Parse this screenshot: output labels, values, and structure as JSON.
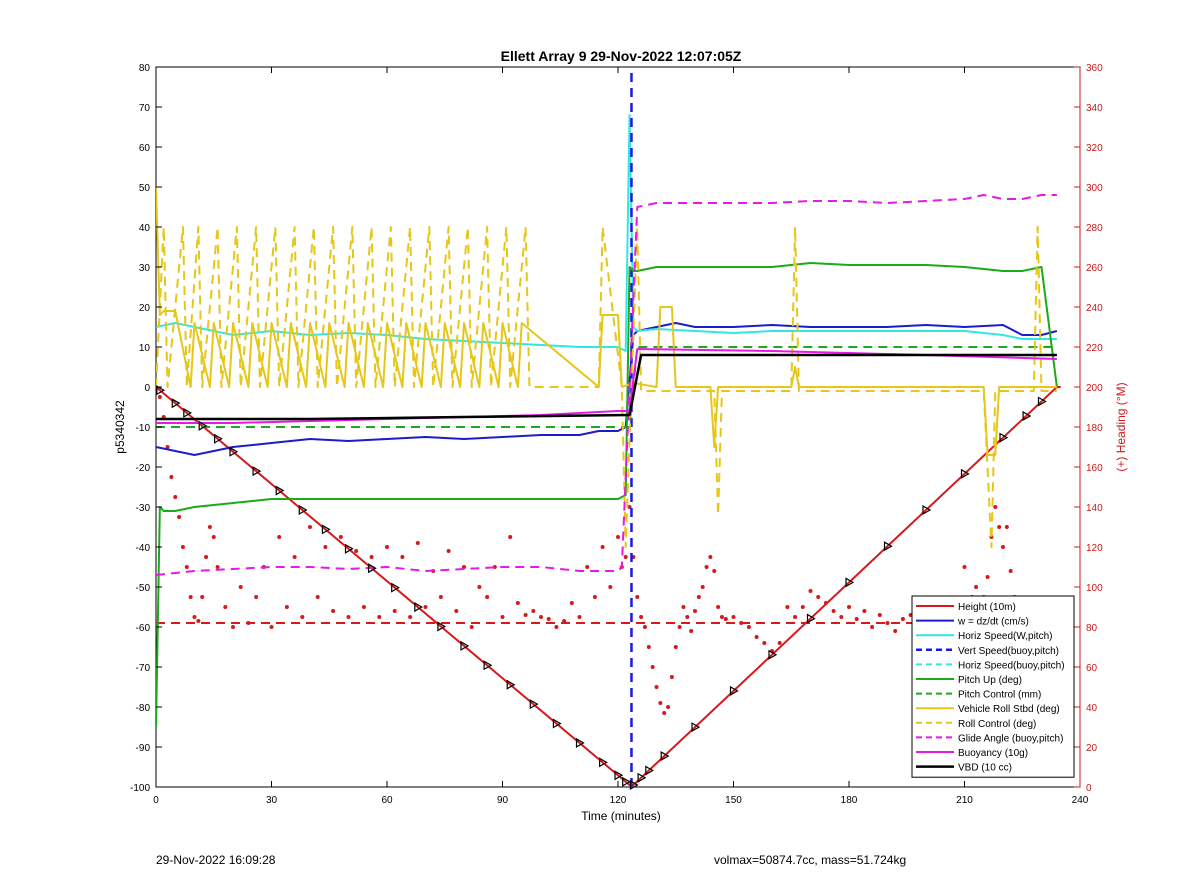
{
  "chart_data": {
    "type": "line",
    "title": "Ellett Array 9 29-Nov-2022 12:07:05Z",
    "xlabel": "Time (minutes)",
    "ylabel": "p5340342",
    "y2label": "(+) Heading (°M)",
    "xlim": [
      0,
      240
    ],
    "ylim": [
      -100,
      80
    ],
    "y2lim": [
      0,
      360
    ],
    "xticks": [
      0,
      30,
      60,
      90,
      120,
      150,
      180,
      210,
      240
    ],
    "yticks": [
      -100,
      -90,
      -80,
      -70,
      -60,
      -50,
      -40,
      -30,
      -20,
      -10,
      0,
      10,
      20,
      30,
      40,
      50,
      60,
      70,
      80
    ],
    "y2ticks": [
      0,
      20,
      40,
      60,
      80,
      100,
      120,
      140,
      160,
      180,
      200,
      220,
      240,
      260,
      280,
      300,
      320,
      340,
      360
    ],
    "grid": false,
    "legend_position": "bottom-right",
    "colors": {
      "red": "#d7191c",
      "blue": "#1c1cc8",
      "cyan": "#33e6e6",
      "dblue": "#1a1ae0",
      "green": "#1aaa1a",
      "yellow": "#e6c619",
      "magenta": "#e619e6",
      "black": "#000000",
      "right_axis": "#cc1a1a"
    },
    "series": [
      {
        "name": "Height (10m)",
        "color": "#d7191c",
        "style": "solid",
        "width": 2,
        "x": [
          0,
          123,
          124,
          234,
          235
        ],
        "y": [
          0,
          -99.5,
          -99.5,
          0,
          0
        ]
      },
      {
        "name": "w = dz/dt (cm/s)",
        "color": "#1c1cc8",
        "style": "solid",
        "width": 2,
        "x": [
          0,
          5,
          10,
          15,
          20,
          30,
          40,
          50,
          60,
          70,
          80,
          90,
          100,
          110,
          115,
          120,
          122,
          124,
          125,
          130,
          135,
          140,
          150,
          160,
          170,
          180,
          190,
          200,
          210,
          220,
          225,
          230,
          234
        ],
        "y": [
          -15,
          -16,
          -17,
          -16,
          -15,
          -14,
          -13,
          -13.5,
          -13,
          -12.5,
          -13,
          -12.5,
          -12,
          -12,
          -11,
          -11,
          -10,
          13,
          14,
          15,
          16,
          15,
          15,
          15.5,
          15,
          15,
          15,
          15.5,
          15,
          15.5,
          13,
          13,
          14
        ]
      },
      {
        "name": "Horiz Speed(W,pitch)",
        "color": "#33e6e6",
        "style": "solid",
        "width": 2,
        "x": [
          0,
          5,
          10,
          20,
          30,
          40,
          50,
          60,
          70,
          80,
          90,
          100,
          110,
          120,
          122,
          123,
          124,
          125,
          130,
          140,
          150,
          160,
          170,
          180,
          190,
          200,
          210,
          220,
          225,
          230,
          234
        ],
        "y": [
          15,
          16,
          15,
          13,
          14,
          13,
          13.5,
          13,
          12,
          11.5,
          11,
          10.5,
          10,
          10,
          9,
          68,
          15,
          14,
          14.5,
          14,
          13.5,
          14,
          14,
          14,
          14,
          14,
          14,
          13,
          12,
          12,
          12
        ]
      },
      {
        "name": "Vert Speed(buoy,pitch)",
        "color": "#1a1ae0",
        "style": "dashed",
        "width": 2.5,
        "x": [
          123.5,
          123.5
        ],
        "y": [
          -100,
          80
        ]
      },
      {
        "name": "Horiz Speed(buoy,pitch)",
        "color": "#33e6e6",
        "style": "dashed",
        "width": 2,
        "x": [],
        "y": []
      },
      {
        "name": "Pitch Up (deg)",
        "color": "#1aaa1a",
        "style": "solid",
        "width": 2,
        "x": [
          0,
          1,
          2,
          5,
          10,
          20,
          30,
          40,
          50,
          60,
          70,
          80,
          90,
          100,
          110,
          120,
          122,
          123,
          124,
          125,
          130,
          140,
          150,
          160,
          170,
          180,
          190,
          200,
          210,
          220,
          225,
          230,
          234
        ],
        "y": [
          -85,
          -30,
          -31,
          -31,
          -30,
          -29,
          -28,
          -28,
          -28,
          -28,
          -28,
          -28,
          -28,
          -28,
          -28,
          -28,
          -27,
          30,
          29,
          29,
          30,
          30,
          30,
          30,
          31,
          30.5,
          30.5,
          30.5,
          30,
          29,
          29,
          30,
          0
        ]
      },
      {
        "name": "Pitch Control (mm)",
        "color": "#1aaa1a",
        "style": "dashed",
        "width": 2,
        "x": [
          0,
          123,
          125,
          234
        ],
        "y": [
          -10,
          -10,
          10,
          10
        ]
      },
      {
        "name": "Vehicle Roll Stbd (deg)",
        "color": "#e6c619",
        "style": "solid",
        "width": 2,
        "x": [
          0,
          1,
          2,
          5,
          9,
          10,
          14,
          15,
          19,
          20,
          24,
          25,
          29,
          30,
          34,
          35,
          39,
          40,
          44,
          45,
          49,
          50,
          54,
          55,
          59,
          60,
          64,
          65,
          69,
          70,
          74,
          75,
          79,
          80,
          84,
          85,
          89,
          90,
          94,
          95,
          115,
          116,
          120,
          121,
          124,
          130,
          131,
          134,
          135,
          144,
          145,
          146,
          147,
          165,
          166,
          167,
          210,
          215,
          216,
          218,
          219,
          230,
          234
        ],
        "y": [
          50,
          18,
          19,
          19,
          0,
          16,
          0,
          16,
          0,
          16,
          0,
          16,
          0,
          16,
          0,
          16,
          0,
          16,
          0,
          16,
          0,
          16,
          0,
          16,
          0,
          16,
          0,
          16,
          0,
          16,
          0,
          16,
          0,
          16,
          0,
          16,
          0,
          16,
          0,
          16,
          0,
          18,
          18,
          0,
          1,
          0,
          20,
          20,
          0,
          0,
          -15,
          0,
          0,
          0,
          5,
          0,
          0,
          0,
          -17,
          -17,
          0,
          0,
          0
        ]
      },
      {
        "name": "Roll Control (deg)",
        "color": "#e6c619",
        "style": "dashed",
        "width": 2,
        "x": [
          0,
          2,
          3,
          7,
          8,
          11,
          12,
          16,
          17,
          21,
          22,
          26,
          27,
          31,
          32,
          36,
          37,
          41,
          42,
          46,
          47,
          51,
          52,
          56,
          57,
          61,
          62,
          66,
          67,
          71,
          72,
          76,
          77,
          81,
          82,
          86,
          87,
          91,
          92,
          96,
          97,
          115,
          116,
          121,
          122,
          125,
          126,
          130,
          131,
          145,
          146,
          147,
          165,
          166,
          167,
          215,
          217,
          218,
          219,
          228,
          229,
          230,
          234
        ],
        "y": [
          0,
          40,
          0,
          40,
          0,
          40,
          0,
          40,
          0,
          40,
          0,
          40,
          0,
          40,
          0,
          40,
          0,
          40,
          0,
          40,
          0,
          40,
          0,
          40,
          0,
          40,
          0,
          40,
          0,
          40,
          0,
          40,
          0,
          40,
          0,
          40,
          0,
          40,
          0,
          40,
          0,
          0,
          40,
          0,
          -40,
          40,
          -1,
          -1,
          -1,
          -1,
          -32,
          -1,
          -1,
          40,
          -1,
          -1,
          -40,
          -1,
          -1,
          -1,
          40,
          -1,
          -1
        ]
      },
      {
        "name": "Glide Angle (buoy,pitch)",
        "color": "#e619e6",
        "style": "dashed",
        "width": 2,
        "x": [
          0,
          10,
          20,
          30,
          40,
          50,
          60,
          70,
          80,
          90,
          100,
          110,
          120,
          121,
          125,
          130,
          140,
          150,
          160,
          170,
          180,
          190,
          200,
          210,
          215,
          220,
          225,
          230,
          234
        ],
        "y": [
          -47,
          -46,
          -45.5,
          -45,
          -45,
          -45.5,
          -45,
          -46,
          -45.5,
          -45,
          -45,
          -46,
          -46,
          -45,
          45,
          46,
          46,
          46,
          46,
          46.5,
          46.5,
          46,
          46.5,
          47,
          48,
          47,
          47,
          48,
          48
        ]
      },
      {
        "name": "Buoyancy (10g)",
        "color": "#e619e6",
        "style": "solid",
        "width": 2,
        "x": [
          0,
          20,
          60,
          100,
          120,
          123,
          125,
          160,
          200,
          234
        ],
        "y": [
          -9,
          -9,
          -8,
          -7,
          -6,
          -6,
          9.5,
          9,
          8,
          7
        ]
      },
      {
        "name": "VBD (10 cc)",
        "color": "#000000",
        "style": "solid",
        "width": 2.5,
        "x": [
          0,
          40,
          80,
          123,
          126,
          160,
          200,
          234
        ],
        "y": [
          -8,
          -8,
          -7.5,
          -7,
          8,
          8,
          8,
          8
        ]
      }
    ],
    "heading_series": {
      "name": "Heading",
      "color": "#d7191c",
      "style": "dotted",
      "axis": "right",
      "x": [
        0,
        1,
        2,
        3,
        4,
        5,
        6,
        7,
        8,
        9,
        10,
        11,
        12,
        13,
        14,
        15,
        16,
        18,
        20,
        22,
        24,
        26,
        28,
        30,
        32,
        34,
        36,
        38,
        40,
        42,
        44,
        46,
        48,
        50,
        52,
        54,
        56,
        58,
        60,
        62,
        64,
        66,
        68,
        70,
        72,
        74,
        76,
        78,
        80,
        82,
        84,
        86,
        88,
        90,
        92,
        94,
        96,
        98,
        100,
        102,
        104,
        106,
        108,
        110,
        112,
        114,
        116,
        118,
        120,
        121,
        122,
        123,
        124,
        125,
        126,
        127,
        128,
        129,
        130,
        131,
        132,
        133,
        134,
        135,
        136,
        137,
        138,
        139,
        140,
        141,
        142,
        143,
        144,
        145,
        146,
        147,
        148,
        150,
        152,
        154,
        156,
        158,
        160,
        162,
        164,
        166,
        168,
        170,
        172,
        174,
        176,
        178,
        180,
        182,
        184,
        186,
        188,
        190,
        192,
        194,
        196,
        198,
        200,
        202,
        204,
        206,
        208,
        210,
        212,
        213,
        214,
        215,
        216,
        217,
        218,
        219,
        220,
        221,
        222,
        223,
        224,
        225,
        226,
        227,
        228,
        229,
        230,
        231,
        232,
        233,
        234
      ],
      "y": [
        200,
        195,
        185,
        170,
        155,
        145,
        135,
        120,
        110,
        95,
        85,
        83,
        95,
        115,
        130,
        125,
        110,
        90,
        80,
        100,
        82,
        95,
        110,
        80,
        125,
        90,
        115,
        85,
        130,
        95,
        120,
        88,
        125,
        85,
        118,
        90,
        115,
        85,
        120,
        88,
        115,
        85,
        122,
        90,
        108,
        95,
        118,
        88,
        110,
        80,
        100,
        95,
        110,
        85,
        125,
        92,
        86,
        88,
        85,
        84,
        80,
        83,
        92,
        85,
        110,
        95,
        120,
        100,
        125,
        110,
        115,
        140,
        115,
        95,
        85,
        80,
        70,
        60,
        50,
        42,
        37,
        40,
        55,
        70,
        80,
        90,
        85,
        78,
        88,
        95,
        100,
        110,
        115,
        108,
        90,
        85,
        84,
        85,
        82,
        80,
        75,
        72,
        68,
        72,
        90,
        85,
        90,
        98,
        95,
        92,
        88,
        85,
        90,
        84,
        88,
        80,
        86,
        82,
        78,
        84,
        86,
        90,
        92,
        80,
        84,
        90,
        85,
        110,
        95,
        100,
        90,
        95,
        105,
        125,
        140,
        130,
        120,
        130,
        108,
        95,
        90,
        80,
        75,
        85,
        88,
        78,
        82,
        70,
        85,
        75,
        60
      ],
      "x_ref": [
        0,
        123,
        234
      ],
      "y_ref": [
        82,
        82,
        82
      ]
    },
    "markers": {
      "name": "Height waypoints",
      "color": "#000000",
      "shape": "triangle",
      "x": [
        1,
        5,
        8,
        12,
        16,
        20,
        26,
        32,
        38,
        44,
        50,
        56,
        62,
        68,
        74,
        80,
        86,
        92,
        98,
        104,
        110,
        116,
        120,
        122,
        124,
        126,
        128,
        132,
        140,
        150,
        160,
        170,
        180,
        190,
        200,
        210,
        220,
        226,
        230
      ],
      "sequence_note": ""
    },
    "legend_entries": [
      "Height (10m)",
      "w = dz/dt (cm/s)",
      "Horiz Speed(W,pitch)",
      "Vert Speed(buoy,pitch)",
      "Horiz Speed(buoy,pitch)",
      "Pitch Up (deg)",
      "Pitch Control (mm)",
      "Vehicle Roll Stbd (deg)",
      "Roll Control (deg)",
      "Glide Angle (buoy,pitch)",
      "Buoyancy (10g)",
      "VBD (10 cc)"
    ]
  },
  "footer": {
    "left": "29-Nov-2022 16:09:28",
    "right": "volmax=50874.7cc, mass=51.724kg"
  }
}
